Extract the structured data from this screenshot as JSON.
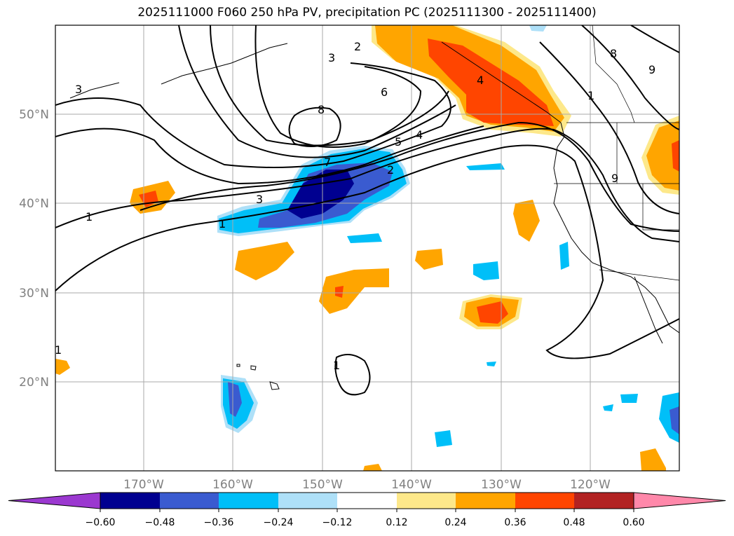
{
  "title": "2025111000 F060 250 hPa PV, precipitation PC (2025111300 - 2025111400)",
  "lat_labels": [
    "50°N",
    "40°N",
    "30°N",
    "20°N"
  ],
  "lon_labels": [
    "170°W",
    "160°W",
    "150°W",
    "140°W",
    "130°W",
    "120°W"
  ],
  "pv_contour_labels": [
    "1",
    "1",
    "1",
    "1",
    "2",
    "2",
    "3",
    "3",
    "3",
    "4",
    "4",
    "5",
    "6",
    "7",
    "8",
    "8",
    "9",
    "9",
    "1"
  ],
  "colorbar": {
    "ticks": [
      "−0.60",
      "−0.48",
      "−0.36",
      "−0.24",
      "−0.12",
      "0.12",
      "0.24",
      "0.36",
      "0.48",
      "0.60"
    ],
    "colors": [
      "#9b38d0",
      "#000090",
      "#3a5bd0",
      "#00bff8",
      "#aee0f8",
      "#ffffff",
      "#fde88a",
      "#ffa500",
      "#ff4500",
      "#b22222",
      "#ff88aa"
    ]
  }
}
